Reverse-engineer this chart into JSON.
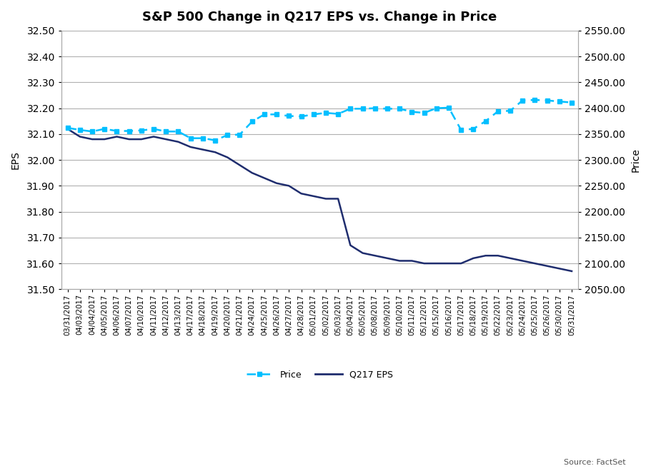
{
  "title": "S&P 500 Change in Q217 EPS vs. Change in Price",
  "ylabel_left": "EPS",
  "ylabel_right": "Price",
  "source_text": "Source: FactSet",
  "dates": [
    "03/31/2017",
    "04/03/2017",
    "04/04/2017",
    "04/05/2017",
    "04/06/2017",
    "04/07/2017",
    "04/10/2017",
    "04/11/2017",
    "04/12/2017",
    "04/13/2017",
    "04/17/2017",
    "04/18/2017",
    "04/19/2017",
    "04/20/2017",
    "04/21/2017",
    "04/24/2017",
    "04/25/2017",
    "04/26/2017",
    "04/27/2017",
    "04/28/2017",
    "05/01/2017",
    "05/02/2017",
    "05/03/2017",
    "05/04/2017",
    "05/05/2017",
    "05/08/2017",
    "05/09/2017",
    "05/10/2017",
    "05/11/2017",
    "05/12/2017",
    "05/15/2017",
    "05/16/2017",
    "05/17/2017",
    "05/18/2017",
    "05/19/2017",
    "05/22/2017",
    "05/23/2017",
    "05/24/2017",
    "05/25/2017",
    "05/26/2017",
    "05/30/2017",
    "05/31/2017"
  ],
  "eps": [
    32.12,
    32.09,
    32.08,
    32.08,
    32.09,
    32.08,
    32.08,
    32.09,
    32.08,
    32.07,
    32.05,
    32.04,
    32.03,
    32.01,
    31.98,
    31.95,
    31.93,
    31.91,
    31.9,
    31.87,
    31.86,
    31.85,
    31.85,
    31.67,
    31.64,
    31.63,
    31.62,
    31.61,
    31.61,
    31.6,
    31.6,
    31.6,
    31.6,
    31.62,
    31.63,
    31.63,
    31.62,
    31.61,
    31.6,
    31.59,
    31.58,
    31.57
  ],
  "price": [
    2362,
    2358,
    2355,
    2360,
    2356,
    2356,
    2357,
    2360,
    2355,
    2355,
    2342,
    2342,
    2338,
    2348,
    2349,
    2374,
    2388,
    2388,
    2385,
    2384,
    2388,
    2391,
    2389,
    2399,
    2399,
    2400,
    2399,
    2399,
    2393,
    2391,
    2400,
    2401,
    2358,
    2360,
    2375,
    2394,
    2395,
    2415,
    2416,
    2415,
    2413,
    2411
  ],
  "eps_color": "#1f2d6e",
  "price_color": "#00bfff",
  "eps_ylim": [
    31.5,
    32.5
  ],
  "price_ylim": [
    2050.0,
    2550.0
  ],
  "eps_yticks": [
    31.5,
    31.6,
    31.7,
    31.8,
    31.9,
    32.0,
    32.1,
    32.2,
    32.3,
    32.4,
    32.5
  ],
  "price_yticks": [
    2050.0,
    2100.0,
    2150.0,
    2200.0,
    2250.0,
    2300.0,
    2350.0,
    2400.0,
    2450.0,
    2500.0,
    2550.0
  ],
  "background_color": "#ffffff",
  "grid_color": "#b0b0b0"
}
